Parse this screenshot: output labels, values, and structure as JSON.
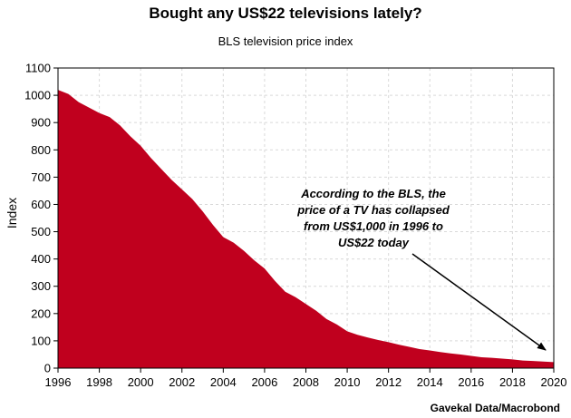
{
  "chart_data": {
    "type": "area",
    "title": "Bought any US$22 televisions lately?",
    "subtitle": "BLS television price index",
    "ylabel": "Index",
    "xlabel": "",
    "xlim": [
      1996,
      2020
    ],
    "ylim": [
      0,
      1100
    ],
    "x_ticks": [
      "1996",
      "1998",
      "2000",
      "2002",
      "2004",
      "2006",
      "2008",
      "2010",
      "2012",
      "2014",
      "2016",
      "2018",
      "2020"
    ],
    "y_ticks": [
      "0",
      "100",
      "200",
      "300",
      "400",
      "500",
      "600",
      "700",
      "800",
      "900",
      "1000",
      "1100"
    ],
    "grid": true,
    "color": "#c0001e",
    "x": [
      1996,
      1996.5,
      1997,
      1997.5,
      1998,
      1998.5,
      1999,
      1999.5,
      2000,
      2000.5,
      2001,
      2001.5,
      2002,
      2002.5,
      2003,
      2003.5,
      2004,
      2004.5,
      2005,
      2005.5,
      2006,
      2006.5,
      2007,
      2007.5,
      2008,
      2008.5,
      2009,
      2009.5,
      2010,
      2010.5,
      2011,
      2011.5,
      2012,
      2012.5,
      2013,
      2013.5,
      2014,
      2014.5,
      2015,
      2015.5,
      2016,
      2016.5,
      2017,
      2017.5,
      2018,
      2018.5,
      2019,
      2019.5,
      2020
    ],
    "values": [
      1020,
      1005,
      975,
      955,
      935,
      920,
      890,
      850,
      815,
      770,
      730,
      690,
      655,
      620,
      575,
      525,
      480,
      460,
      430,
      395,
      365,
      320,
      280,
      260,
      235,
      210,
      180,
      160,
      135,
      122,
      112,
      103,
      95,
      86,
      78,
      70,
      65,
      59,
      54,
      50,
      45,
      40,
      38,
      35,
      32,
      28,
      26,
      24,
      22
    ]
  },
  "annotation": {
    "lines": [
      "According to the BLS, the",
      "price of a TV has collapsed",
      "from US$1,000 in 1996 to",
      "US$22 today"
    ]
  },
  "source": "Gavekal Data/Macrobond"
}
